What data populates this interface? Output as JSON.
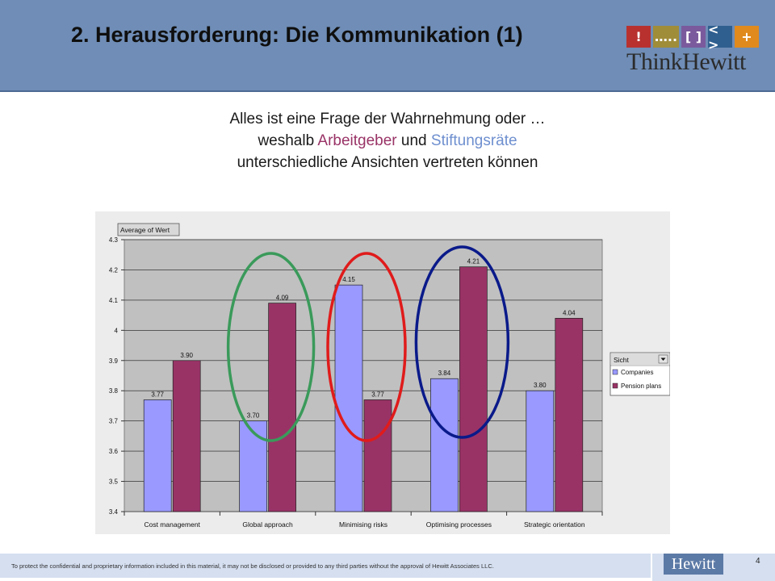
{
  "slide": {
    "title": "2. Herausforderung: Die Kommunikation (1)",
    "subtitle_line1": "Alles ist eine Frage der Wahrnehmung oder …",
    "subtitle_line2_pre": "weshalb ",
    "subtitle_arbeitgeber": "Arbeitgeber",
    "subtitle_line2_mid": " und ",
    "subtitle_stiftungsraete": "Stiftungsräte",
    "subtitle_line3": "unterschiedliche Ansichten vertreten können",
    "footer_text": "To protect the confidential and proprietary information included in this material, it may not be disclosed or provided to any third parties without the approval of Hewitt Associates LLC.",
    "page_number": "4"
  },
  "logo": {
    "boxes": [
      {
        "text": "!",
        "color": "#b8312f"
      },
      {
        "text": "…..",
        "color": "#a08d3a"
      },
      {
        "text": "[ ]",
        "color": "#7a5a9c"
      },
      {
        "text": "< >",
        "color": "#2f5f8f"
      },
      {
        "text": "+",
        "color": "#e08a1e"
      }
    ],
    "think": "Think",
    "hewitt": "Hewitt",
    "footer_logo": "Hewitt"
  },
  "chart_data": {
    "type": "bar",
    "field_button": "Average of Wert",
    "categories": [
      "Cost management",
      "Global approach",
      "Minimising risks",
      "Optimising processes",
      "Strategic orientation"
    ],
    "series": [
      {
        "name": "Companies",
        "values": [
          3.77,
          3.7,
          4.15,
          3.84,
          3.8
        ],
        "color": "#9999ff"
      },
      {
        "name": "Pension plans",
        "values": [
          3.9,
          4.09,
          3.77,
          4.21,
          4.04
        ],
        "color": "#993366"
      }
    ],
    "value_labels": [
      [
        "3.77",
        "3.70",
        "4.15",
        "3.84",
        "3.80"
      ],
      [
        "3.90",
        "4.09",
        "3.77",
        "4.21",
        "4.04"
      ]
    ],
    "yticks": [
      "3.4",
      "3.5",
      "3.6",
      "3.7",
      "3.8",
      "3.9",
      "4",
      "4.1",
      "4.2",
      "4.3"
    ],
    "ylim": [
      3.4,
      4.3
    ],
    "legend_title": "Sicht",
    "legend_position": "right",
    "grid": true,
    "annotations": [
      {
        "category_index": 1,
        "color": "#3a9a5a"
      },
      {
        "category_index": 2,
        "color": "#e01b1b"
      },
      {
        "category_index": 3,
        "color": "#0a1a8a"
      }
    ]
  }
}
